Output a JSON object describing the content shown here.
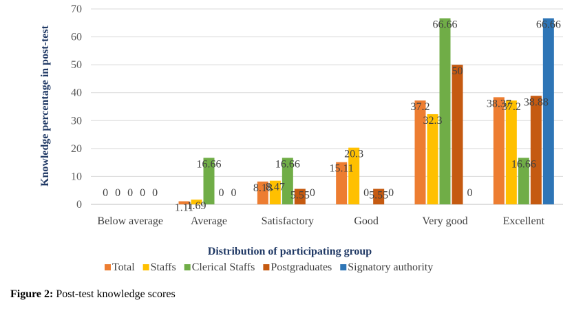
{
  "chart_data": {
    "type": "bar",
    "xlabel": "Distribution of participating group",
    "ylabel": "Knowledge percentage in post-test",
    "ylim": [
      0,
      70
    ],
    "yticks": [
      0,
      10,
      20,
      30,
      40,
      50,
      60,
      70
    ],
    "grid": true,
    "legend_position": "bottom",
    "categories": [
      "Below average",
      "Average",
      "Satisfactory",
      "Good",
      "Very good",
      "Excellent"
    ],
    "series": [
      {
        "name": "Total",
        "color": "#ED7D31",
        "values": [
          0,
          1.11,
          8.18,
          15.11,
          37.2,
          38.37
        ],
        "labels": [
          "0",
          "1.11",
          "8.18",
          "15.11",
          "37.2",
          "38.37"
        ]
      },
      {
        "name": "Staffs",
        "color": "#FFC000",
        "values": [
          0,
          1.69,
          8.47,
          20.3,
          32.3,
          37.2
        ],
        "labels": [
          "0",
          "1.69",
          "8.47",
          "20.3",
          "32.3",
          "37.2"
        ]
      },
      {
        "name": "Clerical Staffs",
        "color": "#70AD47",
        "values": [
          0,
          16.66,
          16.66,
          0,
          66.66,
          16.66
        ],
        "labels": [
          "0",
          "16.66",
          "16.66",
          "0",
          "66.66",
          "16.66"
        ]
      },
      {
        "name": "Postgraduates",
        "color": "#C55A11",
        "values": [
          0,
          0,
          5.55,
          5.55,
          50,
          38.88
        ],
        "labels": [
          "0",
          "0",
          "5.55",
          "5.55",
          "50",
          "38.88"
        ]
      },
      {
        "name": "Signatory authority",
        "color": "#2E75B6",
        "values": [
          0,
          0,
          0,
          0,
          0,
          66.66
        ],
        "labels": [
          "0",
          "0",
          "0",
          "0",
          "0",
          "66.66"
        ]
      }
    ]
  },
  "caption": {
    "label": "Figure 2:",
    "text": " Post-test knowledge scores"
  }
}
